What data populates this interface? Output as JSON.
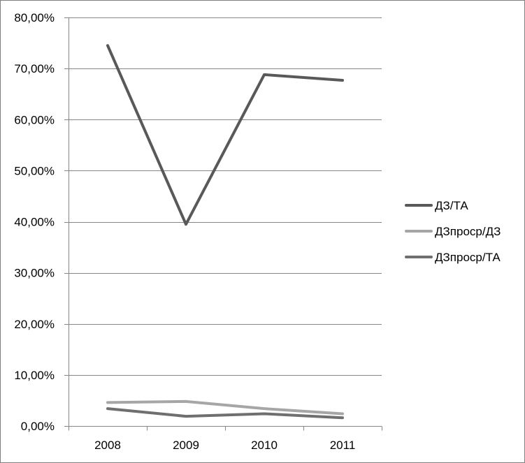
{
  "chart_data": {
    "type": "line",
    "categories": [
      "2008",
      "2009",
      "2010",
      "2011"
    ],
    "series": [
      {
        "name": "ДЗ/ТА",
        "values": [
          74.5,
          39.5,
          68.8,
          67.7
        ],
        "color": "#595959"
      },
      {
        "name": "ДЗпроср/ДЗ",
        "values": [
          4.6,
          4.8,
          3.4,
          2.4
        ],
        "color": "#a6a6a6"
      },
      {
        "name": "ДЗпроср/ТА",
        "values": [
          3.4,
          1.9,
          2.4,
          1.6
        ],
        "color": "#6f6f6f"
      }
    ],
    "ylim": [
      0,
      80
    ],
    "yticks": [
      0,
      10,
      20,
      30,
      40,
      50,
      60,
      70,
      80
    ],
    "ytick_labels": [
      "0,00%",
      "10,00%",
      "20,00%",
      "30,00%",
      "40,00%",
      "50,00%",
      "60,00%",
      "70,00%",
      "80,00%"
    ],
    "grid": true,
    "legend_position": "right",
    "gridline_color": "#868686",
    "axis_color": "#868686"
  }
}
